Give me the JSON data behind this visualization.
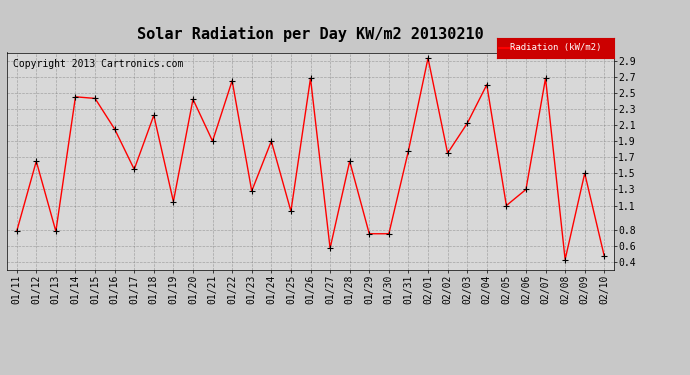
{
  "title": "Solar Radiation per Day KW/m2 20130210",
  "copyright": "Copyright 2013 Cartronics.com",
  "legend_label": "Radiation (kW/m2)",
  "dates": [
    "01/11",
    "01/12",
    "01/13",
    "01/14",
    "01/15",
    "01/16",
    "01/17",
    "01/18",
    "01/19",
    "01/20",
    "01/21",
    "01/22",
    "01/23",
    "01/24",
    "01/25",
    "01/26",
    "01/27",
    "01/28",
    "01/29",
    "01/30",
    "01/31",
    "02/01",
    "02/02",
    "02/03",
    "02/04",
    "02/05",
    "02/06",
    "02/07",
    "02/08",
    "02/09",
    "02/10"
  ],
  "values": [
    0.78,
    1.65,
    0.78,
    2.45,
    2.43,
    2.05,
    1.55,
    2.22,
    1.15,
    2.42,
    1.9,
    2.65,
    1.28,
    1.9,
    1.03,
    2.68,
    0.57,
    1.65,
    0.75,
    0.75,
    1.78,
    2.93,
    1.75,
    2.12,
    2.6,
    1.1,
    1.3,
    2.68,
    0.43,
    1.5,
    0.47
  ],
  "ylim": [
    0.3,
    3.0
  ],
  "yticks": [
    0.4,
    0.6,
    0.8,
    1.1,
    1.3,
    1.5,
    1.7,
    1.9,
    2.1,
    2.3,
    2.5,
    2.7,
    2.9
  ],
  "line_color": "red",
  "marker_color": "black",
  "background_color": "#c8c8c8",
  "plot_bg_color": "#d8d8d8",
  "legend_bg": "#cc0000",
  "legend_fg": "white",
  "title_fontsize": 11,
  "tick_fontsize": 7,
  "copyright_fontsize": 7
}
